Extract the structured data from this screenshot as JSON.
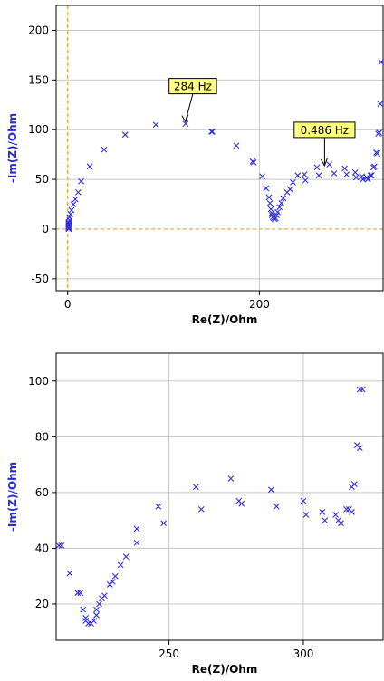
{
  "chart_data": [
    {
      "type": "scatter",
      "xlabel": "Re(Z)/Ohm",
      "ylabel": "-Im(Z)/Ohm",
      "xlim": [
        -12,
        330
      ],
      "ylim": [
        -62,
        225
      ],
      "xticks": [
        0,
        200
      ],
      "yticks": [
        -50,
        0,
        50,
        100,
        150,
        200
      ],
      "grid": true,
      "zero_lines": true,
      "annotations": [
        {
          "text": "284 Hz",
          "x": 123,
          "y": 106
        },
        {
          "text": "0.486 Hz",
          "x": 268,
          "y": 62
        }
      ],
      "points": [
        [
          1,
          0
        ],
        [
          1,
          1
        ],
        [
          1,
          2
        ],
        [
          1,
          3
        ],
        [
          1,
          4
        ],
        [
          1,
          5
        ],
        [
          1,
          6
        ],
        [
          1,
          7
        ],
        [
          2,
          9
        ],
        [
          2,
          12
        ],
        [
          3,
          15
        ],
        [
          4,
          19
        ],
        [
          6,
          25
        ],
        [
          8,
          30
        ],
        [
          11,
          37
        ],
        [
          14,
          48
        ],
        [
          23,
          63
        ],
        [
          38,
          80
        ],
        [
          60,
          95
        ],
        [
          92,
          105
        ],
        [
          123,
          106
        ],
        [
          150,
          98
        ],
        [
          151,
          98
        ],
        [
          176,
          84
        ],
        [
          193,
          68
        ],
        [
          194,
          67
        ],
        [
          203,
          53
        ],
        [
          207,
          41
        ],
        [
          210,
          32
        ],
        [
          211,
          26
        ],
        [
          212,
          20
        ],
        [
          213,
          16
        ],
        [
          213,
          14
        ],
        [
          214,
          12
        ],
        [
          215,
          11
        ],
        [
          216,
          10
        ],
        [
          217,
          11
        ],
        [
          218,
          14
        ],
        [
          219,
          17
        ],
        [
          221,
          22
        ],
        [
          223,
          26
        ],
        [
          225,
          31
        ],
        [
          229,
          37
        ],
        [
          232,
          40
        ],
        [
          235,
          47
        ],
        [
          240,
          54
        ],
        [
          247,
          55
        ],
        [
          248,
          49
        ],
        [
          260,
          62
        ],
        [
          262,
          54
        ],
        [
          273,
          65
        ],
        [
          278,
          56
        ],
        [
          289,
          61
        ],
        [
          291,
          55
        ],
        [
          300,
          57
        ],
        [
          301,
          52
        ],
        [
          307,
          53
        ],
        [
          308,
          50
        ],
        [
          312,
          52
        ],
        [
          313,
          50
        ],
        [
          316,
          54
        ],
        [
          317,
          54
        ],
        [
          319,
          62
        ],
        [
          320,
          63
        ],
        [
          322,
          77
        ],
        [
          323,
          76
        ],
        [
          324,
          96
        ],
        [
          325,
          97
        ],
        [
          326,
          126
        ],
        [
          327,
          168
        ]
      ]
    },
    {
      "type": "scatter",
      "xlabel": "Re(Z)/Ohm",
      "ylabel": "-Im(Z)/Ohm",
      "xlim": [
        208,
        330
      ],
      "ylim": [
        7,
        110
      ],
      "xticks": [
        250,
        300
      ],
      "yticks": [
        20,
        40,
        60,
        80,
        100
      ],
      "grid": true,
      "points": [
        [
          209,
          41
        ],
        [
          210,
          41
        ],
        [
          213,
          31
        ],
        [
          216,
          24
        ],
        [
          217,
          24
        ],
        [
          218,
          18
        ],
        [
          219,
          15
        ],
        [
          219,
          14
        ],
        [
          220,
          13
        ],
        [
          221,
          13
        ],
        [
          222,
          14
        ],
        [
          223,
          16
        ],
        [
          223,
          18
        ],
        [
          224,
          20
        ],
        [
          225,
          22
        ],
        [
          226,
          23
        ],
        [
          228,
          27
        ],
        [
          229,
          28
        ],
        [
          230,
          30
        ],
        [
          232,
          34
        ],
        [
          234,
          37
        ],
        [
          238,
          42
        ],
        [
          238,
          47
        ],
        [
          246,
          55
        ],
        [
          248,
          49
        ],
        [
          260,
          62
        ],
        [
          262,
          54
        ],
        [
          273,
          65
        ],
        [
          276,
          57
        ],
        [
          277,
          56
        ],
        [
          288,
          61
        ],
        [
          290,
          55
        ],
        [
          300,
          57
        ],
        [
          301,
          52
        ],
        [
          307,
          53
        ],
        [
          308,
          50
        ],
        [
          312,
          52
        ],
        [
          313,
          50
        ],
        [
          314,
          49
        ],
        [
          316,
          54
        ],
        [
          317,
          54
        ],
        [
          318,
          53
        ],
        [
          318,
          62
        ],
        [
          319,
          63
        ],
        [
          320,
          77
        ],
        [
          321,
          76
        ],
        [
          321,
          97
        ],
        [
          322,
          97
        ]
      ]
    }
  ]
}
